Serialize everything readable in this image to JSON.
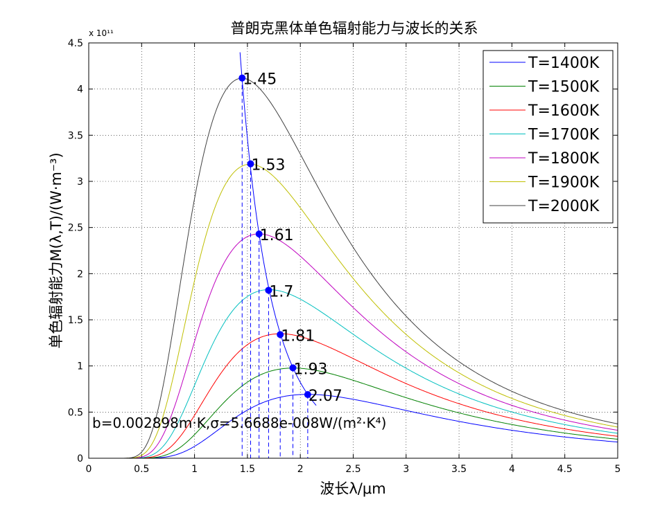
{
  "chart_data": {
    "type": "line",
    "title": "普朗克黑体单色辐射能力与波长的关系",
    "xlabel": "波长λ/μm",
    "ylabel": "单色辐射能力M(λ,T)/(W·m⁻³)",
    "y_exponent_label": "x 10¹¹",
    "xlim": [
      0,
      5
    ],
    "ylim": [
      0,
      4.5
    ],
    "x_ticks": [
      0,
      0.5,
      1,
      1.5,
      2,
      2.5,
      3,
      3.5,
      4,
      4.5,
      5
    ],
    "x_tick_labels": [
      "0",
      "0.5",
      "1",
      "1.5",
      "2",
      "2.5",
      "3",
      "3.5",
      "4",
      "4.5",
      "5"
    ],
    "y_ticks": [
      0,
      0.5,
      1,
      1.5,
      2,
      2.5,
      3,
      3.5,
      4,
      4.5
    ],
    "y_tick_labels": [
      "0",
      "0.5",
      "1",
      "1.5",
      "2",
      "2.5",
      "3",
      "3.5",
      "4",
      "4.5"
    ],
    "grid": true,
    "legend_position": "top-right",
    "x_range_plotted": [
      0.15,
      5
    ],
    "series": [
      {
        "name": "T=1400K",
        "temperature_K": 1400,
        "color": "#0000ff",
        "peak_x": 2.07,
        "peak_y": 0.69
      },
      {
        "name": "T=1500K",
        "temperature_K": 1500,
        "color": "#008000",
        "peak_x": 1.93,
        "peak_y": 0.98
      },
      {
        "name": "T=1600K",
        "temperature_K": 1600,
        "color": "#ff0000",
        "peak_x": 1.81,
        "peak_y": 1.34
      },
      {
        "name": "T=1700K",
        "temperature_K": 1700,
        "color": "#00bfbf",
        "peak_x": 1.7,
        "peak_y": 1.82
      },
      {
        "name": "T=1800K",
        "temperature_K": 1800,
        "color": "#bf00bf",
        "peak_x": 1.61,
        "peak_y": 2.43
      },
      {
        "name": "T=1900K",
        "temperature_K": 1900,
        "color": "#bfbf00",
        "peak_x": 1.53,
        "peak_y": 3.19
      },
      {
        "name": "T=2000K",
        "temperature_K": 2000,
        "color": "#404040",
        "peak_x": 1.45,
        "peak_y": 4.12
      }
    ],
    "peak_points": [
      {
        "x": 2.07,
        "y": 0.69,
        "label": "2.07"
      },
      {
        "x": 1.93,
        "y": 0.98,
        "label": "1.93"
      },
      {
        "x": 1.81,
        "y": 1.34,
        "label": "1.81"
      },
      {
        "x": 1.7,
        "y": 1.82,
        "label": "1.7"
      },
      {
        "x": 1.61,
        "y": 2.43,
        "label": "1.61"
      },
      {
        "x": 1.53,
        "y": 3.19,
        "label": "1.53"
      },
      {
        "x": 1.45,
        "y": 4.12,
        "label": "1.45"
      }
    ],
    "wien_curve": {
      "color": "#0000ff",
      "x_range": [
        1.43,
        2.15
      ]
    },
    "annotation": "b=0.002898m·K,σ=5.6688e-008W/(m²·K⁴)",
    "constants": {
      "b_mK": 0.002898,
      "sigma": 5.6688e-08
    }
  }
}
